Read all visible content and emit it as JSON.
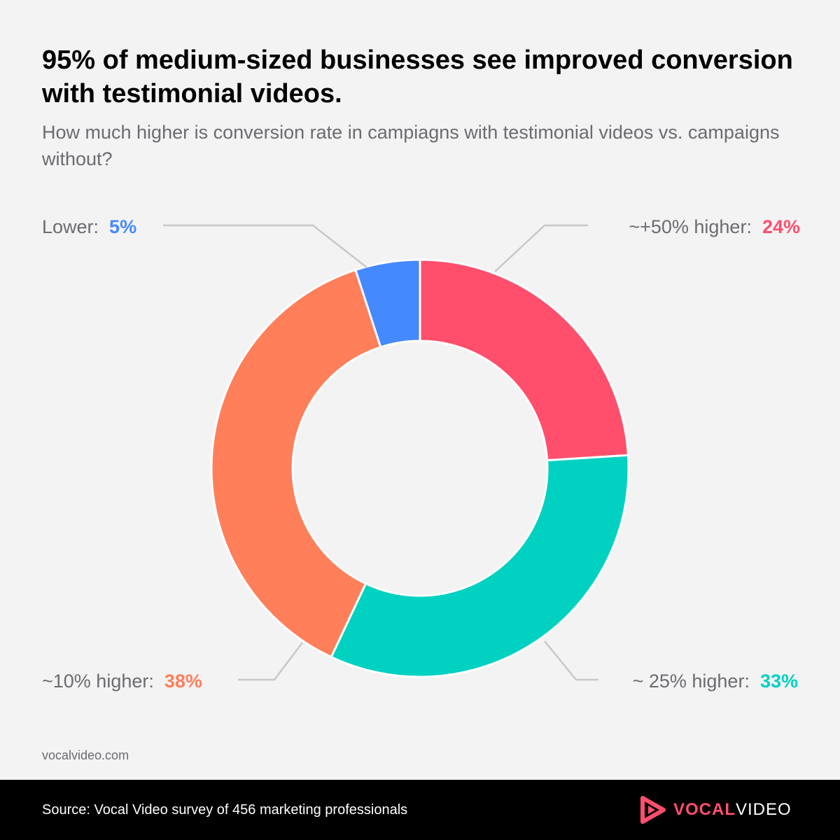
{
  "header": {
    "title": "95% of medium-sized businesses see improved conversion with testimonial videos.",
    "subtitle": "How much higher is conversion rate in campiagns with testimonial videos vs. campaigns without?"
  },
  "chart_data": {
    "type": "pie",
    "variant": "donut",
    "slices": [
      {
        "label": "~+50% higher:",
        "value_label": "24%",
        "value": 24,
        "color": "#ff4f6d",
        "label_side": "top-right"
      },
      {
        "label": "~ 25% higher:",
        "value_label": "33%",
        "value": 33,
        "color": "#00d1c1",
        "label_side": "bottom-right"
      },
      {
        "label": "~10% higher:",
        "value_label": "38%",
        "value": 38,
        "color": "#ff7f5a",
        "label_side": "bottom-left"
      },
      {
        "label": "Lower:",
        "value_label": "5%",
        "value": 5,
        "color": "#4589ff",
        "label_side": "top-left"
      }
    ],
    "start": "top, clockwise"
  },
  "footer": {
    "website": "vocalvideo.com",
    "source": "Source: Vocal Video survey of 456 marketing professionals",
    "brand_part1": "VOCAL",
    "brand_part2": "VIDEO",
    "brand_icon": "play-logo-icon"
  },
  "colors": {
    "background": "#f3f3f4",
    "text_primary": "#000000",
    "text_secondary": "#6b6b70",
    "leader_line": "#c8c8cc",
    "footer_bg": "#000000",
    "brand_accent": "#ff4f6d"
  }
}
